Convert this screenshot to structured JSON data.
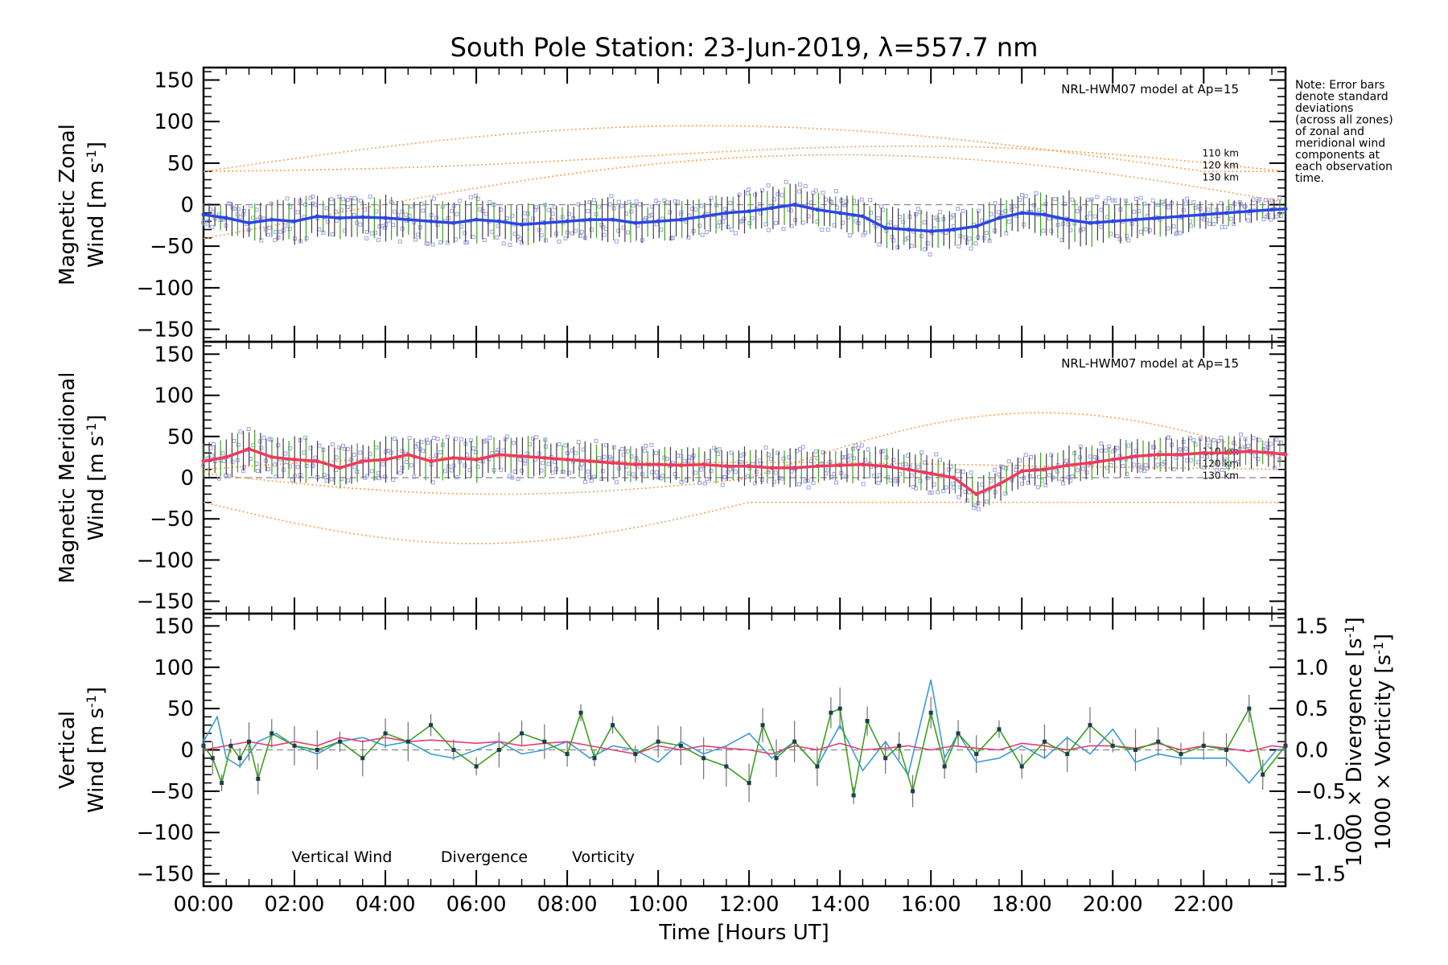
{
  "chart_data": {
    "type": "line",
    "title": "South Pole Station: 23-Jun-2019, λ=557.7 nm",
    "xlabel": "Time [Hours UT]",
    "x_range": [
      0,
      23.8
    ],
    "x_ticks": [
      {
        "value": 0,
        "label": "00:00"
      },
      {
        "value": 2,
        "label": "02:00"
      },
      {
        "value": 4,
        "label": "04:00"
      },
      {
        "value": 6,
        "label": "06:00"
      },
      {
        "value": 8,
        "label": "08:00"
      },
      {
        "value": 10,
        "label": "10:00"
      },
      {
        "value": 12,
        "label": "12:00"
      },
      {
        "value": 14,
        "label": "14:00"
      },
      {
        "value": 16,
        "label": "16:00"
      },
      {
        "value": 18,
        "label": "18:00"
      },
      {
        "value": 20,
        "label": "20:00"
      },
      {
        "value": 22,
        "label": "22:00"
      }
    ],
    "y_ticks": [
      {
        "value": 150,
        "label": "150"
      },
      {
        "value": 100,
        "label": "100"
      },
      {
        "value": 50,
        "label": "50"
      },
      {
        "value": 0,
        "label": "0"
      },
      {
        "value": -50,
        "label": "−50"
      },
      {
        "value": -100,
        "label": "−100"
      },
      {
        "value": -150,
        "label": "−150"
      }
    ],
    "note_lines": [
      "Note: Error bars",
      "denote standard",
      "deviations",
      "(across all zones)",
      "of zonal and",
      "meridional wind",
      "components at",
      "each observation",
      "time."
    ],
    "colors": {
      "zonal": "#2a46e6",
      "meridional": "#f03a5a",
      "vertical": "#3ca01e",
      "divergence": "#3c9bd2",
      "vorticity": "#e63c78",
      "model": "#f5a050",
      "scatter": "#a0a0e6",
      "errbar": "#404040",
      "zero": "#888888"
    },
    "panels": [
      {
        "id": "zonal",
        "ylabel_lines": [
          "Magnetic Zonal",
          "Wind [m s",
          "-1",
          "]"
        ],
        "ylim": [
          -165,
          165
        ],
        "model_label": "NRL-HWM07 model at Ap=15",
        "model_altitudes": [
          "110 km",
          "120 km",
          "130 km"
        ],
        "series": [
          {
            "name": "Magnetic Zonal Wind",
            "x": [
              0,
              0.5,
              1,
              1.5,
              2,
              2.5,
              3,
              3.5,
              4,
              4.5,
              5,
              5.5,
              6,
              6.5,
              7,
              7.5,
              8,
              8.5,
              9,
              9.5,
              10,
              10.5,
              11,
              11.5,
              12,
              12.5,
              13,
              13.5,
              14,
              14.5,
              15,
              15.5,
              16,
              16.5,
              17,
              17.5,
              18,
              18.5,
              19,
              19.5,
              20,
              20.5,
              21,
              21.5,
              22,
              22.5,
              23,
              23.5,
              23.8
            ],
            "y": [
              -12,
              -16,
              -22,
              -18,
              -20,
              -14,
              -16,
              -15,
              -16,
              -18,
              -20,
              -22,
              -18,
              -20,
              -24,
              -22,
              -20,
              -18,
              -18,
              -22,
              -20,
              -18,
              -14,
              -10,
              -8,
              -4,
              0,
              -6,
              -10,
              -14,
              -28,
              -30,
              -32,
              -30,
              -26,
              -16,
              -10,
              -12,
              -18,
              -22,
              -20,
              -18,
              -16,
              -14,
              -12,
              -10,
              -8,
              -6,
              -5
            ],
            "errors": [
              12,
              16,
              20,
              22,
              24,
              22,
              24,
              22,
              24,
              22,
              24,
              22,
              24,
              22,
              24,
              22,
              20,
              22,
              24,
              22,
              22,
              20,
              20,
              22,
              22,
              24,
              24,
              22,
              22,
              20,
              22,
              22,
              24,
              22,
              22,
              20,
              22,
              26,
              30,
              28,
              24,
              22,
              20,
              18,
              16,
              14,
              12,
              12,
              12
            ]
          }
        ]
      },
      {
        "id": "meridional",
        "ylabel_lines": [
          "Magnetic Meridional",
          "Wind [m s",
          "-1",
          "]"
        ],
        "ylim": [
          -165,
          165
        ],
        "model_label": "NRL-HWM07 model at Ap=15",
        "model_altitudes": [
          "110 km",
          "120 km",
          "130 km"
        ],
        "series": [
          {
            "name": "Magnetic Meridional Wind",
            "x": [
              0,
              0.5,
              1,
              1.5,
              2,
              2.5,
              3,
              3.5,
              4,
              4.5,
              5,
              5.5,
              6,
              6.5,
              7,
              7.5,
              8,
              8.5,
              9,
              9.5,
              10,
              10.5,
              11,
              11.5,
              12,
              12.5,
              13,
              13.5,
              14,
              14.5,
              15,
              15.5,
              16,
              16.5,
              17,
              17.5,
              18,
              18.5,
              19,
              19.5,
              20,
              20.5,
              21,
              21.5,
              22,
              22.5,
              23,
              23.5,
              23.8
            ],
            "y": [
              20,
              25,
              35,
              25,
              22,
              20,
              12,
              20,
              22,
              28,
              20,
              24,
              22,
              28,
              26,
              24,
              22,
              20,
              18,
              16,
              16,
              15,
              16,
              14,
              14,
              12,
              12,
              14,
              15,
              16,
              14,
              10,
              5,
              0,
              -20,
              -8,
              8,
              10,
              15,
              18,
              22,
              26,
              28,
              28,
              30,
              30,
              32,
              30,
              28
            ],
            "errors": [
              18,
              22,
              24,
              22,
              24,
              22,
              24,
              22,
              24,
              22,
              24,
              22,
              24,
              22,
              24,
              22,
              20,
              22,
              20,
              20,
              20,
              18,
              20,
              20,
              20,
              22,
              22,
              22,
              20,
              20,
              20,
              20,
              22,
              20,
              18,
              18,
              20,
              20,
              20,
              20,
              20,
              20,
              18,
              18,
              18,
              18,
              18,
              18,
              18
            ]
          }
        ]
      },
      {
        "id": "vertical",
        "ylabel_lines": [
          "Vertical",
          "Wind [m s",
          "-1",
          "]"
        ],
        "ylim": [
          -165,
          165
        ],
        "right_axis": {
          "ylim": [
            -1.65,
            1.65
          ],
          "ticks": [
            {
              "value": 1.5,
              "label": "1.5"
            },
            {
              "value": 1.0,
              "label": "1.0"
            },
            {
              "value": 0.5,
              "label": "0.5"
            },
            {
              "value": 0.0,
              "label": "0.0"
            },
            {
              "value": -0.5,
              "label": "−0.5"
            },
            {
              "value": -1.0,
              "label": "−1.0"
            },
            {
              "value": -1.5,
              "label": "−1.5"
            }
          ],
          "label_divergence": "1000 × Divergence [s",
          "label_vorticity": "1000 × Vorticity [s",
          "superscript": "-1",
          "close": "]"
        },
        "legend": [
          "Vertical Wind",
          "Divergence",
          "Vorticity"
        ],
        "series": [
          {
            "name": "Vertical Wind",
            "x": [
              0,
              0.2,
              0.4,
              0.6,
              0.8,
              1.0,
              1.2,
              1.5,
              2.0,
              2.5,
              3.0,
              3.5,
              4.0,
              4.5,
              5.0,
              5.5,
              6.0,
              6.5,
              7.0,
              7.5,
              8.0,
              8.3,
              8.6,
              9.0,
              9.5,
              10.0,
              10.5,
              11.0,
              11.5,
              12.0,
              12.3,
              12.6,
              13.0,
              13.5,
              13.8,
              14.0,
              14.3,
              14.6,
              15.0,
              15.3,
              15.6,
              16.0,
              16.3,
              16.6,
              17.0,
              17.5,
              18.0,
              18.5,
              19.0,
              19.5,
              20.0,
              20.5,
              21.0,
              21.5,
              22.0,
              22.5,
              23.0,
              23.3,
              23.8
            ],
            "y": [
              5,
              -10,
              -40,
              5,
              -10,
              10,
              -35,
              20,
              5,
              0,
              10,
              -10,
              20,
              10,
              30,
              0,
              -20,
              0,
              20,
              10,
              -5,
              45,
              -10,
              30,
              -5,
              10,
              5,
              -10,
              -20,
              -40,
              30,
              -10,
              10,
              -20,
              45,
              50,
              -55,
              35,
              -10,
              5,
              -50,
              45,
              -20,
              20,
              -5,
              25,
              -20,
              10,
              -5,
              30,
              5,
              0,
              10,
              -5,
              5,
              0,
              50,
              -30,
              5
            ]
          },
          {
            "name": "Divergence",
            "x": [
              0,
              0.3,
              0.5,
              0.8,
              1.2,
              1.6,
              2.0,
              2.5,
              3.0,
              3.5,
              4.0,
              4.5,
              5.0,
              5.5,
              6.0,
              6.5,
              7.0,
              7.5,
              8.0,
              8.5,
              9.0,
              9.5,
              10.0,
              10.5,
              11.0,
              11.5,
              12.0,
              12.5,
              13.0,
              13.5,
              14.0,
              14.5,
              15.0,
              15.5,
              16.0,
              16.3,
              16.6,
              17.0,
              17.5,
              18.0,
              18.5,
              19.0,
              19.5,
              20.0,
              20.5,
              21.0,
              21.5,
              22.0,
              22.5,
              23.0,
              23.3,
              23.6,
              23.8
            ],
            "y": [
              0.1,
              0.4,
              -0.1,
              -0.2,
              0.1,
              0.2,
              0.05,
              -0.05,
              0.1,
              0.15,
              0.05,
              0.1,
              -0.05,
              -0.1,
              0.0,
              0.1,
              -0.05,
              0.0,
              0.1,
              -0.1,
              0.05,
              0.0,
              -0.15,
              0.1,
              -0.05,
              0.05,
              0.2,
              -0.1,
              0.1,
              -0.2,
              0.3,
              -0.25,
              0.1,
              -0.3,
              0.85,
              -0.1,
              0.2,
              -0.15,
              -0.1,
              0.05,
              -0.1,
              0.15,
              -0.05,
              0.25,
              -0.15,
              -0.05,
              -0.1,
              -0.1,
              -0.1,
              -0.4,
              -0.2,
              0.0,
              0.0
            ]
          },
          {
            "name": "Vorticity",
            "x": [
              0,
              0.5,
              1.0,
              1.5,
              2.0,
              2.5,
              3.0,
              3.5,
              4.0,
              4.5,
              5.0,
              5.5,
              6.0,
              6.5,
              7.0,
              7.5,
              8.0,
              8.5,
              9.0,
              9.5,
              10.0,
              10.5,
              11.0,
              11.5,
              12.0,
              12.5,
              13.0,
              13.5,
              14.0,
              14.5,
              15.0,
              15.5,
              16.0,
              16.5,
              17.0,
              17.5,
              18.0,
              18.5,
              19.0,
              19.5,
              20.0,
              20.5,
              21.0,
              21.5,
              22.0,
              22.5,
              23.0,
              23.5,
              23.8
            ],
            "y": [
              0.0,
              0.05,
              0.1,
              0.05,
              0.1,
              0.05,
              0.15,
              0.1,
              0.15,
              0.1,
              0.12,
              0.1,
              0.08,
              0.1,
              0.05,
              0.08,
              0.1,
              0.05,
              0.0,
              -0.05,
              0.05,
              0.0,
              0.05,
              0.02,
              0.0,
              -0.05,
              0.05,
              0.0,
              0.08,
              0.0,
              0.02,
              0.05,
              0.0,
              0.05,
              0.02,
              0.0,
              0.08,
              0.05,
              0.0,
              0.05,
              0.05,
              0.02,
              0.08,
              0.0,
              0.05,
              0.02,
              -0.02,
              0.05,
              0.03
            ]
          }
        ]
      }
    ]
  }
}
